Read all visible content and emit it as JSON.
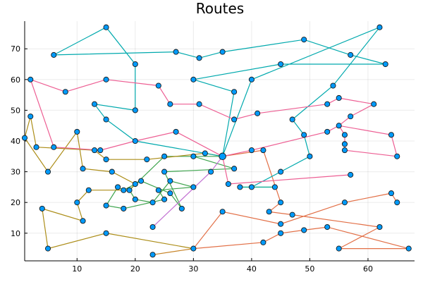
{
  "chart_data": {
    "type": "line",
    "title": "Routes",
    "xlabel": "",
    "ylabel": "",
    "xlim": [
      1,
      68
    ],
    "ylim": [
      1,
      79
    ],
    "x_ticks": [
      10,
      20,
      30,
      40,
      50,
      60
    ],
    "y_ticks": [
      10,
      20,
      30,
      40,
      50,
      60,
      70
    ],
    "grid": true,
    "legend": "none",
    "marker_color": "#009AFA",
    "series": [
      {
        "color": "#E26F46",
        "points": [
          [
            35,
            35
          ],
          [
            42,
            37
          ],
          [
            45,
            20
          ],
          [
            43,
            17
          ],
          [
            47,
            16
          ],
          [
            62,
            12
          ],
          [
            55,
            5
          ],
          [
            67,
            5
          ],
          [
            53,
            12
          ],
          [
            49,
            11
          ],
          [
            45,
            10
          ],
          [
            42,
            7
          ],
          [
            30,
            5
          ],
          [
            35,
            17
          ],
          [
            45,
            13
          ],
          [
            56,
            20
          ],
          [
            64,
            23
          ],
          [
            65,
            20
          ]
        ]
      },
      {
        "color": "#3DA44D",
        "points": [
          [
            35,
            35
          ],
          [
            30,
            35
          ],
          [
            37,
            31
          ],
          [
            25,
            30
          ],
          [
            28,
            18
          ],
          [
            26,
            23
          ],
          [
            21,
            27
          ],
          [
            20,
            26
          ],
          [
            18,
            24
          ],
          [
            17,
            25
          ],
          [
            15,
            19
          ],
          [
            18,
            18
          ],
          [
            25,
            21
          ],
          [
            24,
            24
          ],
          [
            30,
            25
          ],
          [
            26,
            27
          ],
          [
            23,
            20
          ],
          [
            20,
            21
          ],
          [
            19,
            24
          ],
          [
            25,
            35
          ],
          [
            35,
            35
          ]
        ]
      },
      {
        "color": "#C271D2",
        "points": [
          [
            35,
            35
          ],
          [
            33,
            30
          ],
          [
            23,
            12
          ]
        ]
      },
      {
        "color": "#AC8D18",
        "points": [
          [
            35,
            35
          ],
          [
            32,
            36
          ],
          [
            22,
            34
          ],
          [
            15,
            34
          ],
          [
            13,
            37
          ],
          [
            3,
            38
          ],
          [
            2,
            48
          ],
          [
            1,
            41
          ],
          [
            5,
            30
          ],
          [
            10,
            43
          ],
          [
            11,
            31
          ],
          [
            16,
            30
          ],
          [
            20,
            26
          ],
          [
            19,
            24
          ],
          [
            12,
            24
          ],
          [
            10,
            20
          ],
          [
            11,
            14
          ],
          [
            4,
            18
          ],
          [
            5,
            5
          ],
          [
            15,
            10
          ],
          [
            30,
            5
          ]
        ]
      },
      {
        "color": "#00A9AD",
        "points": [
          [
            35,
            35
          ],
          [
            20,
            40
          ],
          [
            15,
            47
          ],
          [
            13,
            52
          ],
          [
            20,
            50
          ],
          [
            20,
            65
          ],
          [
            15,
            77
          ],
          [
            6,
            68
          ],
          [
            27,
            69
          ],
          [
            31,
            67
          ],
          [
            35,
            69
          ],
          [
            49,
            73
          ],
          [
            57,
            68
          ],
          [
            63,
            65
          ],
          [
            45,
            65
          ],
          [
            30,
            60
          ],
          [
            37,
            56
          ],
          [
            35,
            35
          ],
          [
            40,
            60
          ],
          [
            62,
            77
          ],
          [
            54,
            58
          ],
          [
            47,
            47
          ],
          [
            49,
            42
          ],
          [
            50,
            35
          ],
          [
            45,
            30
          ],
          [
            40,
            25
          ]
        ]
      },
      {
        "color": "#ED5E93",
        "points": [
          [
            35,
            35
          ],
          [
            40,
            37
          ],
          [
            53,
            43
          ],
          [
            55,
            45
          ],
          [
            64,
            42
          ],
          [
            65,
            35
          ],
          [
            56,
            37
          ],
          [
            56,
            39
          ],
          [
            56,
            42
          ],
          [
            55,
            45
          ],
          [
            57,
            48
          ],
          [
            61,
            52
          ],
          [
            55,
            54
          ],
          [
            53,
            52
          ],
          [
            41,
            49
          ],
          [
            37,
            47
          ],
          [
            31,
            52
          ],
          [
            26,
            52
          ],
          [
            24,
            58
          ],
          [
            15,
            60
          ],
          [
            8,
            56
          ],
          [
            2,
            60
          ],
          [
            6,
            38
          ],
          [
            14,
            37
          ],
          [
            20,
            40
          ],
          [
            27,
            43
          ],
          [
            35,
            35
          ],
          [
            36,
            26
          ],
          [
            57,
            29
          ]
        ]
      },
      {
        "color": "#C68225",
        "points": [
          [
            23,
            3
          ],
          [
            30,
            5
          ]
        ]
      },
      {
        "color": "#00A98D",
        "points": [
          [
            38,
            25
          ],
          [
            44,
            25
          ]
        ]
      }
    ]
  }
}
